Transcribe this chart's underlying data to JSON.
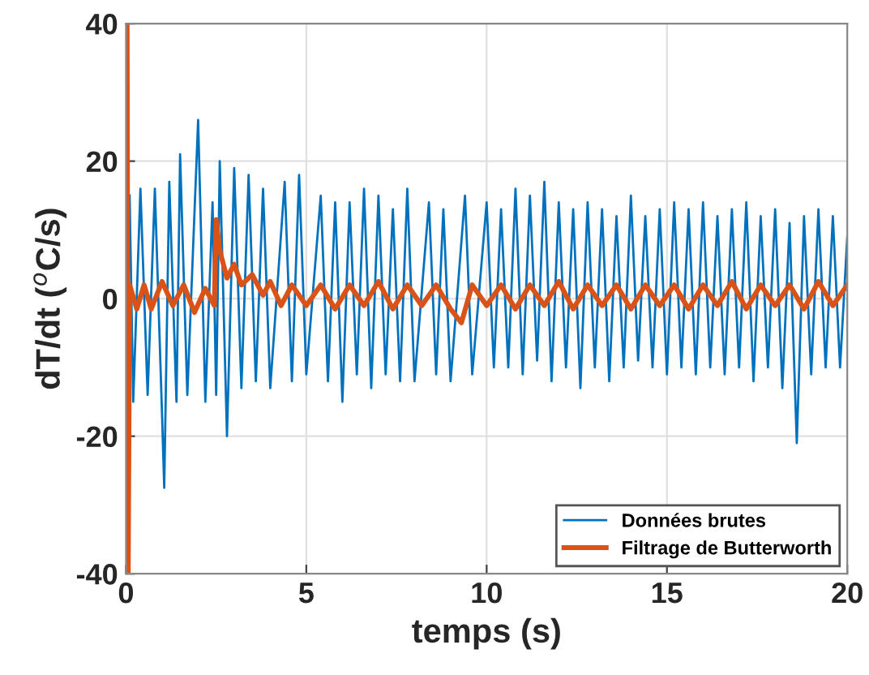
{
  "chart_data": {
    "type": "line",
    "xlabel": "temps (s)",
    "ylabel": "dT/dt ($^{o}$C/s)",
    "xlim": [
      0,
      20
    ],
    "ylim": [
      -40,
      40
    ],
    "xticks": [
      0,
      5,
      10,
      15,
      20
    ],
    "yticks": [
      -40,
      -20,
      0,
      20,
      40
    ],
    "grid": true,
    "legend": "bottom right",
    "series": [
      {
        "name": "Données brutes",
        "color": "#0072bd",
        "x": [
          0.1,
          0.2,
          0.4,
          0.6,
          0.8,
          1.0,
          1.06,
          1.2,
          1.4,
          1.5,
          1.7,
          2.0,
          2.2,
          2.4,
          2.5,
          2.6,
          2.8,
          3.0,
          3.2,
          3.4,
          3.6,
          3.8,
          4.0,
          4.4,
          4.6,
          4.8,
          5.0,
          5.4,
          5.6,
          5.8,
          6.0,
          6.2,
          6.4,
          6.6,
          6.8,
          7.0,
          7.2,
          7.4,
          7.6,
          7.8,
          8.0,
          8.4,
          8.6,
          8.8,
          9.0,
          9.4,
          9.6,
          10.0,
          10.2,
          10.4,
          10.6,
          10.8,
          11.0,
          11.2,
          11.4,
          11.6,
          11.8,
          12.0,
          12.2,
          12.4,
          12.6,
          12.8,
          13.0,
          13.2,
          13.4,
          13.6,
          13.8,
          14.0,
          14.2,
          14.4,
          14.6,
          14.8,
          15.0,
          15.2,
          15.4,
          15.6,
          15.8,
          16.0,
          16.2,
          16.4,
          16.6,
          16.8,
          17.0,
          17.2,
          17.4,
          17.6,
          17.8,
          18.0,
          18.2,
          18.4,
          18.6,
          18.8,
          19.0,
          19.2,
          19.4,
          19.6,
          19.8,
          20.0
        ],
        "values": [
          15,
          -15,
          16,
          -14,
          16,
          -17,
          -27.5,
          17,
          -15,
          21,
          -14,
          26,
          -15,
          14,
          -14,
          20,
          -20,
          19,
          -13,
          18,
          -12,
          16,
          -13,
          17,
          -12,
          18,
          -11,
          15,
          -12,
          14,
          -15,
          14,
          -11,
          16,
          -13,
          15,
          -11,
          13,
          -12,
          16,
          -12,
          14,
          -11,
          13,
          -12,
          15,
          -11,
          14,
          -10,
          13,
          -10,
          16,
          -11,
          15,
          -9,
          17,
          -12,
          14,
          -10,
          13,
          -13,
          14,
          -10,
          13,
          -12,
          12,
          -10,
          15,
          -9,
          12,
          -10,
          13,
          -11,
          14,
          -10,
          13,
          -11,
          14,
          -10,
          12,
          -11,
          13,
          -10,
          14,
          -12,
          12,
          -10,
          13,
          -13,
          11,
          -21,
          12,
          -11,
          13,
          -10,
          12,
          -10,
          9
        ]
      },
      {
        "name": "Filtrage de Butterworth",
        "color": "#d95319",
        "x": [
          0,
          0.03,
          0.06,
          0.1,
          0.3,
          0.5,
          0.7,
          1.0,
          1.3,
          1.6,
          1.9,
          2.2,
          2.45,
          2.5,
          2.6,
          2.8,
          3.0,
          3.2,
          3.5,
          3.8,
          4.0,
          4.3,
          4.6,
          5.0,
          5.4,
          5.8,
          6.2,
          6.6,
          7.0,
          7.4,
          7.8,
          8.2,
          8.6,
          9.0,
          9.3,
          9.6,
          10.0,
          10.4,
          10.8,
          11.2,
          11.6,
          12.0,
          12.4,
          12.8,
          13.2,
          13.6,
          14.0,
          14.4,
          14.8,
          15.2,
          15.6,
          16.0,
          16.4,
          16.8,
          17.2,
          17.6,
          18.0,
          18.4,
          18.8,
          19.2,
          19.6,
          20.0
        ],
        "values": [
          0,
          40,
          -40,
          2,
          -1.5,
          2,
          -1.5,
          2.5,
          -1,
          2,
          -2,
          1.5,
          -1,
          11.5,
          7,
          3,
          5,
          2,
          3.5,
          0.5,
          2.5,
          -1,
          2,
          -1,
          2,
          -1.5,
          2,
          -1,
          2.5,
          -1.5,
          2,
          -1,
          2,
          -1.5,
          -3.5,
          2,
          -1,
          2,
          -1.5,
          2,
          -1,
          2.5,
          -1.5,
          2,
          -1,
          2,
          -1.5,
          2,
          -1,
          2,
          -1.5,
          2,
          -1,
          2.5,
          -1.5,
          2,
          -1,
          2,
          -1.5,
          2.5,
          -1,
          2
        ]
      }
    ]
  }
}
